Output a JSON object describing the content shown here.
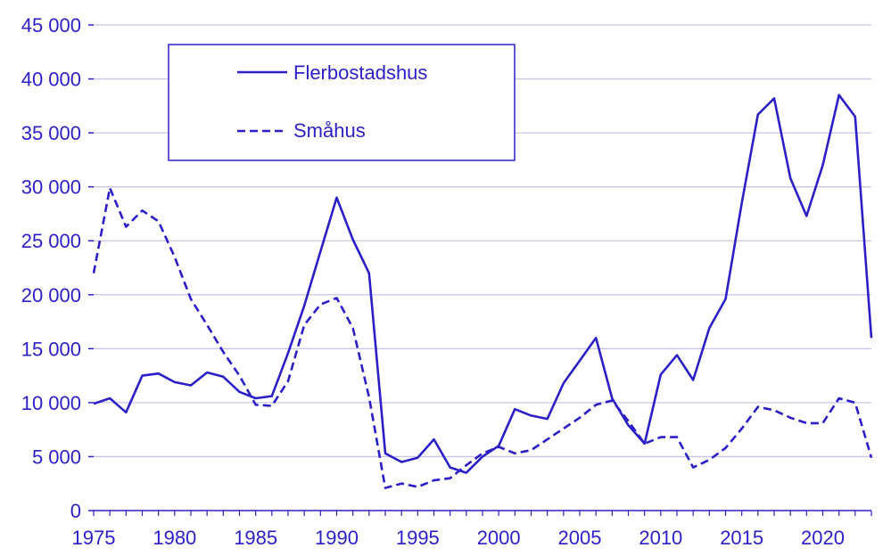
{
  "colors": {
    "series": "#2B1FC8",
    "grid": "#C9C6EA",
    "axis_text": "#2B1FC8",
    "background": "#FFFFFF"
  },
  "chart_data": {
    "type": "line",
    "title": "",
    "xlabel": "",
    "ylabel": "",
    "xlim": [
      1975,
      2023
    ],
    "ylim": [
      0,
      45000
    ],
    "x_ticks": [
      1975,
      1980,
      1985,
      1990,
      1995,
      2000,
      2005,
      2010,
      2015,
      2020
    ],
    "y_ticks": [
      0,
      5000,
      10000,
      15000,
      20000,
      25000,
      30000,
      35000,
      40000,
      45000
    ],
    "y_tick_labels": [
      "0",
      "5 000",
      "10 000",
      "15 000",
      "20 000",
      "25 000",
      "30 000",
      "35 000",
      "40 000",
      "45 000"
    ],
    "x_tick_labels": [
      "1975",
      "1980",
      "1985",
      "1990",
      "1995",
      "2000",
      "2005",
      "2010",
      "2015",
      "2020"
    ],
    "grid": "horizontal",
    "legend_position": "top-left",
    "x": [
      1975,
      1976,
      1977,
      1978,
      1979,
      1980,
      1981,
      1982,
      1983,
      1984,
      1985,
      1986,
      1987,
      1988,
      1989,
      1990,
      1991,
      1992,
      1993,
      1994,
      1995,
      1996,
      1997,
      1998,
      1999,
      2000,
      2001,
      2002,
      2003,
      2004,
      2005,
      2006,
      2007,
      2008,
      2009,
      2010,
      2011,
      2012,
      2013,
      2014,
      2015,
      2016,
      2017,
      2018,
      2019,
      2020,
      2021,
      2022,
      2023
    ],
    "series": [
      {
        "name": "Flerbostadshus",
        "style": "solid",
        "values": [
          9900,
          10400,
          9100,
          12500,
          12700,
          11900,
          11600,
          12800,
          12400,
          11000,
          10400,
          10600,
          14600,
          19000,
          24000,
          29000,
          25100,
          22000,
          5300,
          4500,
          4900,
          6600,
          4000,
          3500,
          5000,
          6000,
          9400,
          8800,
          8500,
          11800,
          13900,
          16000,
          10400,
          7900,
          6200,
          12600,
          14400,
          12100,
          16900,
          19600,
          28500,
          36700,
          38200,
          30800,
          27300,
          32000,
          38500,
          36500,
          16000
        ]
      },
      {
        "name": "Småhus",
        "style": "dashed",
        "values": [
          22000,
          29900,
          26300,
          27800,
          26800,
          23500,
          19600,
          17200,
          14700,
          12500,
          9800,
          9700,
          12000,
          17200,
          19100,
          19700,
          16900,
          10500,
          2100,
          2500,
          2200,
          2800,
          3000,
          4200,
          5300,
          5900,
          5300,
          5600,
          6600,
          7600,
          8600,
          9800,
          10200,
          8300,
          6200,
          6800,
          6800,
          4000,
          4700,
          5800,
          7600,
          9600,
          9300,
          8600,
          8100,
          8100,
          10400,
          10000,
          4900
        ]
      }
    ]
  }
}
